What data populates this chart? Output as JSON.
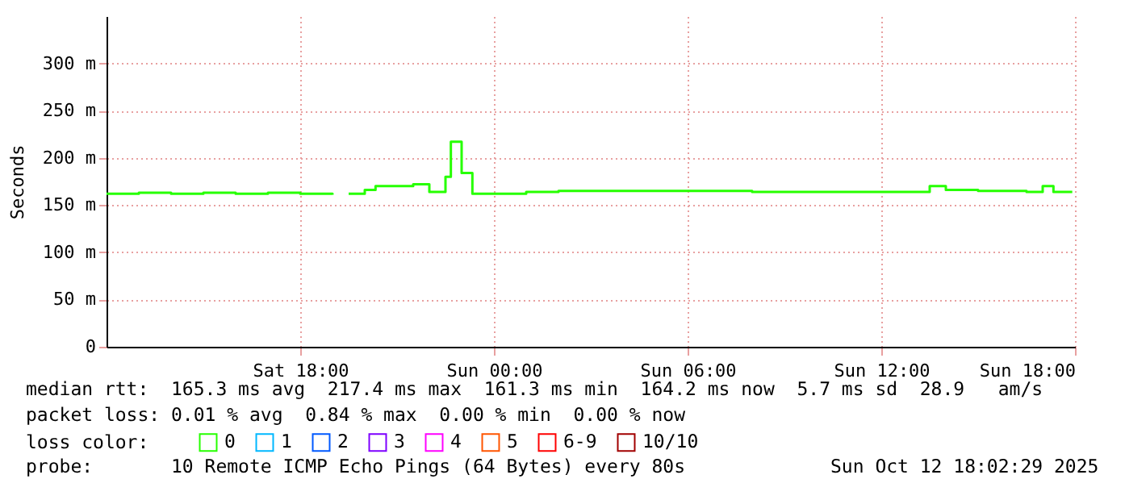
{
  "chart_data": {
    "type": "step",
    "ylabel": "Seconds",
    "x": [
      "2025-10-11T12:00",
      "2025-10-11T13:00",
      "2025-10-11T14:00",
      "2025-10-11T15:00",
      "2025-10-11T16:00",
      "2025-10-11T17:00",
      "2025-10-11T18:00",
      "2025-10-11T19:00",
      "2025-10-11T19:10",
      "2025-10-11T19:30",
      "2025-10-11T20:00",
      "2025-10-11T20:20",
      "2025-10-11T21:00",
      "2025-10-11T21:30",
      "2025-10-11T22:00",
      "2025-10-11T22:30",
      "2025-10-11T22:40",
      "2025-10-11T23:00",
      "2025-10-11T23:20",
      "2025-10-12T00:00",
      "2025-10-12T01:00",
      "2025-10-12T02:00",
      "2025-10-12T04:00",
      "2025-10-12T06:00",
      "2025-10-12T08:00",
      "2025-10-12T10:00",
      "2025-10-12T12:00",
      "2025-10-12T13:30",
      "2025-10-12T14:00",
      "2025-10-12T15:00",
      "2025-10-12T16:30",
      "2025-10-12T17:00",
      "2025-10-12T17:20",
      "2025-10-12T17:55"
    ],
    "series": [
      {
        "name": "0",
        "color": "#26ff00",
        "values": [
          162,
          163,
          162,
          163,
          162,
          163,
          162,
          161,
          null,
          162,
          166,
          170,
          170,
          172,
          164,
          180,
          217,
          184,
          162,
          162,
          164,
          165,
          165,
          165,
          164,
          164,
          164,
          170,
          166,
          165,
          164,
          170,
          164,
          164
        ]
      },
      {
        "name": "1",
        "color": "#00b8ff",
        "values": [
          null,
          null,
          null,
          null,
          null,
          null,
          null,
          null,
          null,
          null,
          null,
          null,
          null,
          null,
          null,
          null,
          null,
          null,
          null,
          null,
          null,
          null,
          null,
          null,
          null,
          null,
          null,
          null,
          null,
          null,
          null,
          null,
          null,
          null
        ]
      },
      {
        "name": "2",
        "color": "#0059ff",
        "values": [
          null,
          null,
          null,
          null,
          null,
          null,
          null,
          null,
          null,
          null,
          null,
          null,
          null,
          null,
          null,
          null,
          null,
          null,
          null,
          null,
          null,
          null,
          null,
          null,
          null,
          null,
          null,
          null,
          null,
          null,
          null,
          null,
          null,
          null
        ]
      },
      {
        "name": "3",
        "color": "#7e00ff",
        "values": [
          null,
          null,
          null,
          null,
          null,
          null,
          null,
          null,
          null,
          null,
          null,
          null,
          null,
          null,
          null,
          null,
          null,
          null,
          null,
          null,
          null,
          null,
          null,
          null,
          null,
          null,
          null,
          null,
          null,
          null,
          null,
          null,
          null,
          null
        ]
      },
      {
        "name": "4",
        "color": "#ff00ff",
        "values": [
          null,
          null,
          null,
          null,
          null,
          null,
          null,
          null,
          null,
          null,
          null,
          null,
          null,
          null,
          null,
          null,
          null,
          null,
          null,
          null,
          null,
          null,
          null,
          null,
          null,
          null,
          null,
          null,
          null,
          null,
          null,
          null,
          null,
          null
        ]
      },
      {
        "name": "5",
        "color": "#ff5500",
        "values": [
          null,
          null,
          null,
          null,
          null,
          null,
          null,
          null,
          null,
          null,
          null,
          null,
          null,
          null,
          null,
          null,
          null,
          null,
          null,
          null,
          null,
          null,
          null,
          null,
          null,
          null,
          null,
          null,
          null,
          null,
          null,
          null,
          null,
          null
        ]
      },
      {
        "name": "6-9",
        "color": "#ff0000",
        "values": [
          null,
          null,
          null,
          null,
          null,
          null,
          null,
          null,
          null,
          null,
          null,
          null,
          null,
          null,
          null,
          null,
          null,
          null,
          null,
          null,
          null,
          null,
          null,
          null,
          null,
          null,
          null,
          null,
          null,
          null,
          null,
          null,
          null,
          null
        ]
      },
      {
        "name": "10/10",
        "color": "#a10000",
        "values": [
          null,
          null,
          null,
          null,
          null,
          null,
          null,
          null,
          null,
          null,
          null,
          null,
          null,
          null,
          null,
          null,
          null,
          null,
          null,
          null,
          null,
          null,
          null,
          null,
          null,
          null,
          null,
          null,
          null,
          null,
          null,
          null,
          null,
          null
        ]
      }
    ],
    "xlim": [
      "2025-10-11T12:00",
      "2025-10-12T18:00"
    ],
    "xticks": [
      {
        "value": "2025-10-11T18:00",
        "label": "Sat 18:00"
      },
      {
        "value": "2025-10-12T00:00",
        "label": "Sun 00:00"
      },
      {
        "value": "2025-10-12T06:00",
        "label": "Sun 06:00"
      },
      {
        "value": "2025-10-12T12:00",
        "label": "Sun 12:00"
      },
      {
        "value": "2025-10-12T18:00",
        "label": "Sun 18:00"
      }
    ],
    "ylim": [
      0,
      350
    ],
    "yticks": [
      0,
      {
        "value": 50,
        "label": "50 m"
      },
      {
        "value": 100,
        "label": "100 m"
      },
      {
        "value": 150,
        "label": "150 m"
      },
      {
        "value": 200,
        "label": "200 m"
      },
      {
        "value": 250,
        "label": "250 m"
      },
      {
        "value": 300,
        "label": "300 m"
      }
    ],
    "grid": true,
    "legend": "bottom",
    "legend_title": "loss color:",
    "annotations": [
      "median rtt:  165.3 ms avg  217.4 ms max  161.3 ms min  164.2 ms now  5.7 ms sd  28.9   am/s",
      "packet loss: 0.01 % avg  0.84 % max  0.00 % min  0.00 % now",
      "probe:       10 Remote ICMP Echo Pings (64 Bytes) every 80s             Sun Oct 12 18:02:29 2025"
    ]
  }
}
